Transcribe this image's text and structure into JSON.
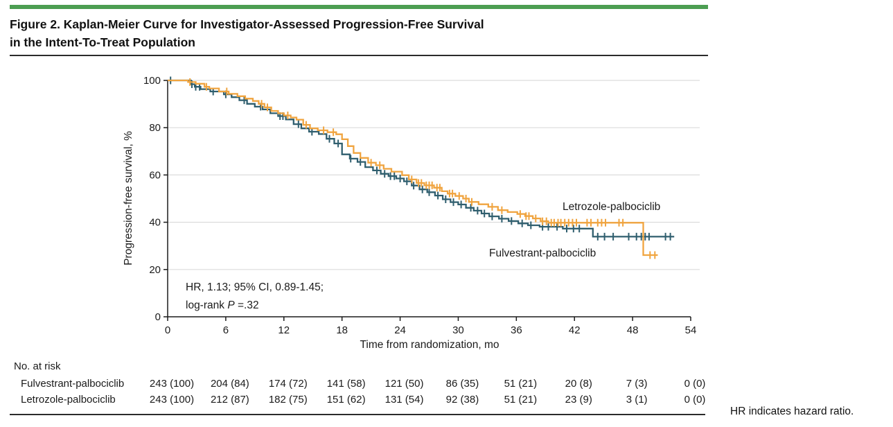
{
  "figure": {
    "title_line1": "Figure 2. Kaplan-Meier Curve for Investigator-Assessed Progression-Free Survival",
    "title_line2": "in the Intent-To-Treat Population",
    "footnote": "HR indicates hazard ratio."
  },
  "colors": {
    "accent_green": "#4c9e52",
    "letrozole_orange": "#f0a43f",
    "fulvestrant_teal": "#2f5e6e",
    "gridline": "#dcdcdc",
    "axis": "#1a1a1a"
  },
  "chart_data": {
    "type": "line",
    "subtype": "kaplan-meier-step",
    "xlabel": "Time from randomization, mo",
    "ylabel": "Progression-free survival, %",
    "xlim": [
      0,
      54
    ],
    "ylim": [
      0,
      100
    ],
    "x_ticks": [
      0,
      6,
      12,
      18,
      24,
      30,
      36,
      42,
      48,
      54
    ],
    "y_ticks": [
      0,
      20,
      40,
      60,
      80,
      100
    ],
    "grid": "horizontal-light",
    "legend_position": "inline-labels-right",
    "annotation": {
      "line1": "HR, 1.13; 95% CI, 0.89-1.45;",
      "line2_prefix": "log-rank ",
      "line2_italic": "P",
      "line2_suffix": " =.32"
    },
    "series": [
      {
        "name": "Fulvestrant-palbociclib",
        "color": "#2f5e6e",
        "end_month": 52.3,
        "steps": [
          [
            0,
            100
          ],
          [
            2.4,
            98.4
          ],
          [
            2.8,
            97.3
          ],
          [
            3.4,
            96.3
          ],
          [
            4.4,
            95.3
          ],
          [
            5.8,
            94.1
          ],
          [
            6.6,
            92.9
          ],
          [
            7.4,
            91.6
          ],
          [
            8.2,
            90.1
          ],
          [
            9.0,
            88.9
          ],
          [
            9.8,
            87.7
          ],
          [
            10.6,
            86.1
          ],
          [
            11.4,
            84.9
          ],
          [
            12.2,
            83.5
          ],
          [
            13.0,
            81.5
          ],
          [
            13.8,
            79.7
          ],
          [
            14.6,
            78.3
          ],
          [
            15.6,
            77.3
          ],
          [
            16.4,
            75.3
          ],
          [
            17.2,
            73.3
          ],
          [
            18.0,
            68.7
          ],
          [
            18.8,
            66.9
          ],
          [
            19.6,
            65.5
          ],
          [
            20.4,
            63.3
          ],
          [
            21.2,
            61.9
          ],
          [
            22.0,
            60.5
          ],
          [
            22.8,
            59.5
          ],
          [
            23.6,
            58.5
          ],
          [
            24.4,
            57.3
          ],
          [
            25.2,
            55.5
          ],
          [
            26.0,
            53.9
          ],
          [
            26.8,
            52.7
          ],
          [
            27.6,
            51.3
          ],
          [
            28.4,
            49.7
          ],
          [
            29.2,
            48.5
          ],
          [
            30.0,
            47.5
          ],
          [
            30.8,
            46.1
          ],
          [
            31.6,
            44.9
          ],
          [
            32.4,
            43.7
          ],
          [
            33.2,
            42.5
          ],
          [
            34.2,
            41.5
          ],
          [
            35.2,
            40.5
          ],
          [
            36.2,
            39.5
          ],
          [
            37.2,
            38.7
          ],
          [
            38.4,
            38.1
          ],
          [
            40.8,
            37.3
          ],
          [
            43.9,
            33.9
          ]
        ],
        "censor_months": [
          0.3,
          2.5,
          2.9,
          3.3,
          4.7,
          6.0,
          7.9,
          9.6,
          11.6,
          11.9,
          13.5,
          14.9,
          16.7,
          17.6,
          18.9,
          19.9,
          21.6,
          22.4,
          23.0,
          23.4,
          24.0,
          24.7,
          25.4,
          26.3,
          27.0,
          27.9,
          28.7,
          29.5,
          30.3,
          31.3,
          32.0,
          32.7,
          33.5,
          34.5,
          35.5,
          36.6,
          37.5,
          38.7,
          39.3,
          40.2,
          41.2,
          41.9,
          42.5,
          44.4,
          45.1,
          46.0,
          47.6,
          48.4,
          48.9,
          49.3,
          49.7,
          51.4,
          51.9
        ]
      },
      {
        "name": "Letrozole-palbociclib",
        "color": "#f0a43f",
        "end_month": 50.6,
        "steps": [
          [
            0,
            100
          ],
          [
            2.1,
            99.3
          ],
          [
            2.9,
            98.6
          ],
          [
            3.8,
            97.3
          ],
          [
            4.3,
            96.6
          ],
          [
            5.3,
            95.3
          ],
          [
            6.3,
            94.3
          ],
          [
            7.2,
            93.3
          ],
          [
            8.0,
            92.3
          ],
          [
            8.8,
            91.3
          ],
          [
            9.4,
            90.1
          ],
          [
            10.0,
            88.6
          ],
          [
            10.7,
            87.1
          ],
          [
            11.4,
            86.1
          ],
          [
            12.0,
            85.2
          ],
          [
            12.7,
            84.3
          ],
          [
            13.3,
            83.4
          ],
          [
            14.0,
            81.2
          ],
          [
            14.7,
            79.7
          ],
          [
            15.5,
            78.9
          ],
          [
            16.5,
            78.1
          ],
          [
            17.4,
            77.2
          ],
          [
            18.0,
            75.1
          ],
          [
            18.6,
            72.2
          ],
          [
            19.2,
            69.3
          ],
          [
            19.9,
            67.2
          ],
          [
            20.7,
            65.2
          ],
          [
            21.5,
            64.1
          ],
          [
            22.3,
            62.6
          ],
          [
            23.1,
            61.4
          ],
          [
            24.2,
            59.9
          ],
          [
            24.9,
            58.1
          ],
          [
            25.7,
            56.6
          ],
          [
            26.5,
            55.6
          ],
          [
            27.5,
            54.6
          ],
          [
            28.3,
            53.1
          ],
          [
            28.9,
            52.1
          ],
          [
            29.7,
            51.1
          ],
          [
            30.5,
            50.0
          ],
          [
            31.1,
            48.6
          ],
          [
            32.1,
            47.6
          ],
          [
            33.1,
            46.5
          ],
          [
            34.1,
            45.1
          ],
          [
            35.1,
            44.3
          ],
          [
            36.1,
            43.5
          ],
          [
            36.9,
            42.6
          ],
          [
            37.7,
            41.6
          ],
          [
            38.5,
            40.4
          ],
          [
            39.3,
            39.8
          ],
          [
            49.1,
            26.1
          ]
        ],
        "censor_months": [
          2.3,
          4.0,
          6.1,
          9.7,
          10.3,
          12.4,
          14.3,
          16.1,
          17.1,
          21.0,
          21.9,
          25.2,
          25.9,
          26.2,
          26.7,
          27.0,
          27.3,
          27.8,
          28.1,
          29.1,
          29.4,
          30.1,
          30.8,
          31.4,
          33.5,
          34.5,
          36.4,
          37.0,
          37.3,
          38.0,
          38.7,
          39.1,
          39.6,
          39.9,
          40.3,
          40.6,
          41.0,
          41.4,
          41.8,
          42.2,
          43.3,
          43.7,
          44.4,
          44.8,
          45.2,
          46.6,
          47.0,
          49.8,
          50.3
        ]
      }
    ],
    "risk_table": {
      "title": "No. at risk",
      "rows": [
        {
          "label": "Fulvestrant-palbociclib",
          "values": [
            "243 (100)",
            "204 (84)",
            "174 (72)",
            "141 (58)",
            "121 (50)",
            "86 (35)",
            "51 (21)",
            "20 (8)",
            "7 (3)",
            "0 (0)"
          ]
        },
        {
          "label": "Letrozole-palbociclib",
          "values": [
            "243 (100)",
            "212 (87)",
            "182 (75)",
            "151 (62)",
            "131 (54)",
            "92 (38)",
            "51 (21)",
            "23 (9)",
            "3 (1)",
            "0 (0)"
          ]
        }
      ]
    }
  }
}
